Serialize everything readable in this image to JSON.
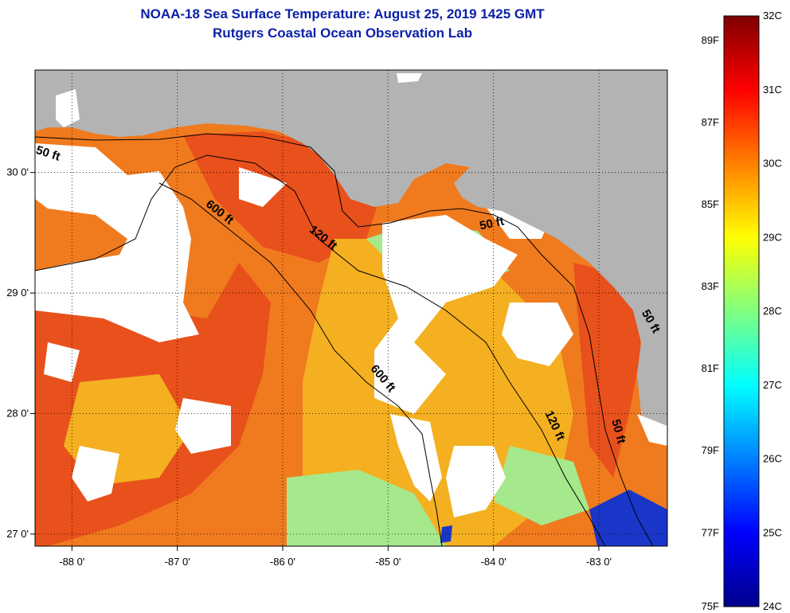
{
  "header": {
    "title": "NOAA-18 Sea Surface Temperature:  August 25, 2019 1425 GMT",
    "subtitle": "Rutgers Coastal Ocean Observation Lab"
  },
  "map": {
    "lon_range": [
      -88.35,
      -82.35
    ],
    "lat_range": [
      26.9,
      30.85
    ],
    "lon_ticks": [
      {
        "value": -88,
        "label": "-88 0'"
      },
      {
        "value": -87,
        "label": "-87 0'"
      },
      {
        "value": -86,
        "label": "-86 0'"
      },
      {
        "value": -85,
        "label": "-85 0'"
      },
      {
        "value": -84,
        "label": "-84 0'"
      },
      {
        "value": -83,
        "label": "-83 0'"
      }
    ],
    "lat_ticks": [
      {
        "value": 27,
        "label": "27 0'"
      },
      {
        "value": 28,
        "label": "28 0'"
      },
      {
        "value": 29,
        "label": "29 0'"
      },
      {
        "value": 30,
        "label": "30 0'"
      }
    ],
    "contour_labels": [
      "50 ft",
      "600 ft",
      "120 ft",
      "50 ft",
      "600 ft",
      "120 ft",
      "50 ft",
      "50 ft"
    ],
    "colors": {
      "land": "#b3b3b3",
      "cloud": "#ffffff",
      "warm": "#f07a1e",
      "hot": "#e8501c",
      "mid": "#f4b020",
      "cool": "#a6e88c",
      "cold": "#1a36c8"
    }
  },
  "colorbar": {
    "celsius": [
      "32C",
      "31C",
      "30C",
      "29C",
      "28C",
      "27C",
      "26C",
      "25C",
      "24C"
    ],
    "fahrenheit": [
      "89F",
      "87F",
      "85F",
      "83F",
      "81F",
      "79F",
      "77F",
      "75F"
    ],
    "stops": [
      "#00008b",
      "#0000ff",
      "#0080ff",
      "#00ffff",
      "#80ff80",
      "#ffff00",
      "#ff8000",
      "#ff0000",
      "#800000"
    ]
  }
}
